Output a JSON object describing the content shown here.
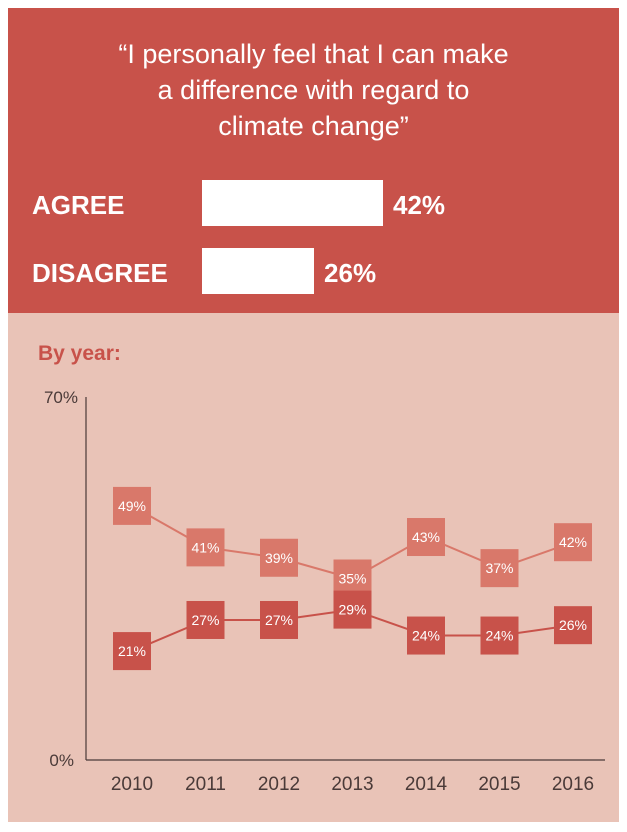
{
  "question": {
    "lines": [
      "“I personally feel that I can make",
      "a difference with regard to",
      "climate change”"
    ]
  },
  "summary": {
    "agree_label": "AGREE",
    "agree_value": "42%",
    "agree_pct": 42,
    "disagree_label": "DISAGREE",
    "disagree_value": "26%",
    "disagree_pct": 26
  },
  "by_year_label": "By year:",
  "colors": {
    "top_panel": "#c8524a",
    "bottom_panel": "#e9c3b7",
    "agree_series": "#d9786a",
    "disagree_series": "#c8524a",
    "axis": "#4a3a38"
  },
  "chart_data": {
    "type": "line",
    "x": [
      "2010",
      "2011",
      "2012",
      "2013",
      "2014",
      "2015",
      "2016"
    ],
    "ylim": [
      0,
      70
    ],
    "y_tick_labels": [
      "0%",
      "70%"
    ],
    "series": [
      {
        "values": [
          49,
          41,
          39,
          35,
          43,
          37,
          42
        ],
        "labels": [
          "49%",
          "41%",
          "39%",
          "35%",
          "43%",
          "37%",
          "42%"
        ]
      },
      {
        "values": [
          21,
          27,
          27,
          29,
          24,
          24,
          26
        ],
        "labels": [
          "21%",
          "27%",
          "27%",
          "29%",
          "24%",
          "24%",
          "26%"
        ]
      }
    ]
  }
}
